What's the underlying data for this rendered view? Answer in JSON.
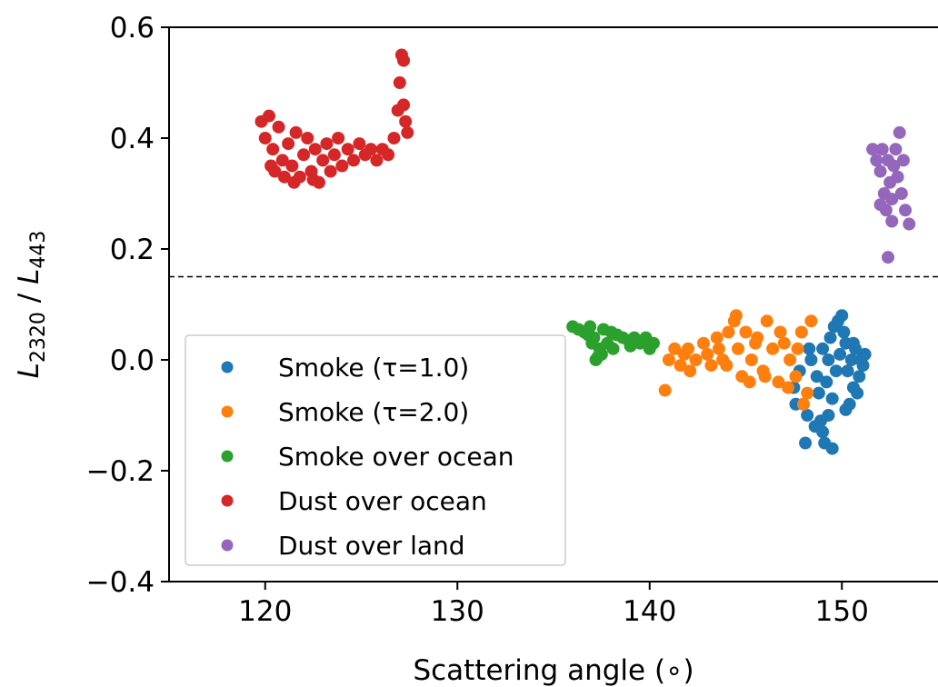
{
  "chart_data": {
    "type": "scatter",
    "title": "",
    "xlabel": "Scattering angle (∘)",
    "ylabel_parts": {
      "main": "L",
      "num_sub": "2320",
      "sep": " / ",
      "den": "L",
      "den_sub": "443"
    },
    "xlim": [
      115,
      155
    ],
    "ylim": [
      -0.4,
      0.6
    ],
    "xticks": [
      120,
      130,
      140,
      150
    ],
    "xtick_labels": [
      "120",
      "130",
      "140",
      "150"
    ],
    "yticks": [
      -0.4,
      -0.2,
      0.0,
      0.2,
      0.4,
      0.6
    ],
    "ytick_labels": [
      "−0.4",
      "−0.2",
      "0.0",
      "0.2",
      "0.4",
      "0.6"
    ],
    "threshold_line": {
      "y": 0.15,
      "style": "dashed"
    },
    "legend_position": "lower-left",
    "series": [
      {
        "name": "Smoke (τ=1.0)",
        "color": "#1f77b4",
        "points": [
          [
            147.5,
            -0.05
          ],
          [
            147.8,
            -0.02
          ],
          [
            148.0,
            -0.08
          ],
          [
            148.2,
            -0.1
          ],
          [
            148.4,
            0.0
          ],
          [
            148.6,
            -0.12
          ],
          [
            148.8,
            -0.06
          ],
          [
            149.0,
            0.02
          ],
          [
            149.1,
            -0.15
          ],
          [
            149.3,
            -0.1
          ],
          [
            149.4,
            0.04
          ],
          [
            149.5,
            -0.16
          ],
          [
            149.6,
            0.06
          ],
          [
            149.8,
            0.07
          ],
          [
            150.0,
            0.08
          ],
          [
            150.1,
            0.05
          ],
          [
            150.2,
            0.03
          ],
          [
            150.3,
            -0.02
          ],
          [
            150.5,
            0.0
          ],
          [
            150.6,
            -0.05
          ],
          [
            150.7,
            0.02
          ],
          [
            150.9,
            -0.03
          ],
          [
            151.0,
            0.0
          ],
          [
            151.1,
            -0.01
          ],
          [
            151.2,
            0.01
          ],
          [
            149.2,
            -0.04
          ],
          [
            149.7,
            -0.02
          ],
          [
            150.4,
            -0.08
          ],
          [
            148.1,
            -0.15
          ],
          [
            148.9,
            -0.11
          ],
          [
            149.9,
            0.01
          ],
          [
            150.8,
            -0.06
          ],
          [
            147.6,
            -0.08
          ],
          [
            148.3,
            0.02
          ],
          [
            149.5,
            -0.07
          ],
          [
            150.2,
            -0.09
          ],
          [
            149.0,
            -0.13
          ],
          [
            150.6,
            0.03
          ],
          [
            148.7,
            -0.03
          ],
          [
            149.3,
            0.0
          ]
        ]
      },
      {
        "name": "Smoke (τ=2.0)",
        "color": "#ff7f0e",
        "points": [
          [
            140.8,
            -0.055
          ],
          [
            141.0,
            0.0
          ],
          [
            141.3,
            0.02
          ],
          [
            141.6,
            -0.01
          ],
          [
            142.0,
            0.02
          ],
          [
            142.4,
            0.0
          ],
          [
            142.8,
            0.03
          ],
          [
            143.2,
            -0.01
          ],
          [
            143.5,
            0.04
          ],
          [
            143.8,
            0.0
          ],
          [
            144.1,
            0.05
          ],
          [
            144.4,
            0.07
          ],
          [
            144.6,
            0.02
          ],
          [
            144.8,
            -0.03
          ],
          [
            145.0,
            0.05
          ],
          [
            145.3,
            0.0
          ],
          [
            145.6,
            0.04
          ],
          [
            145.9,
            -0.02
          ],
          [
            146.1,
            0.07
          ],
          [
            146.4,
            0.02
          ],
          [
            146.7,
            -0.04
          ],
          [
            147.0,
            0.03
          ],
          [
            147.3,
            0.0
          ],
          [
            147.6,
            -0.03
          ],
          [
            147.9,
            0.05
          ],
          [
            148.2,
            -0.06
          ],
          [
            148.4,
            0.07
          ],
          [
            144.5,
            0.08
          ],
          [
            143.0,
            0.01
          ],
          [
            142.1,
            -0.02
          ],
          [
            146.0,
            -0.03
          ],
          [
            145.5,
            0.03
          ],
          [
            147.2,
            -0.05
          ],
          [
            148.0,
            -0.08
          ],
          [
            144.0,
            -0.01
          ],
          [
            146.8,
            0.05
          ],
          [
            141.8,
            0.01
          ],
          [
            143.6,
            0.02
          ],
          [
            145.2,
            -0.04
          ],
          [
            147.7,
            0.02
          ]
        ]
      },
      {
        "name": "Smoke over ocean",
        "color": "#2ca02c",
        "points": [
          [
            136.0,
            0.06
          ],
          [
            136.3,
            0.055
          ],
          [
            136.6,
            0.05
          ],
          [
            136.9,
            0.06
          ],
          [
            137.1,
            0.04
          ],
          [
            137.2,
            0.0
          ],
          [
            137.4,
            0.02
          ],
          [
            137.6,
            0.055
          ],
          [
            137.8,
            0.03
          ],
          [
            138.0,
            0.05
          ],
          [
            138.3,
            0.045
          ],
          [
            138.6,
            0.04
          ],
          [
            138.9,
            0.035
          ],
          [
            139.2,
            0.04
          ],
          [
            139.5,
            0.03
          ],
          [
            139.8,
            0.04
          ],
          [
            140.0,
            0.02
          ],
          [
            137.0,
            0.03
          ],
          [
            137.5,
            0.01
          ],
          [
            138.1,
            0.02
          ],
          [
            136.8,
            0.045
          ],
          [
            139.0,
            0.025
          ],
          [
            140.2,
            0.03
          ],
          [
            137.3,
            0.005
          ]
        ]
      },
      {
        "name": "Dust over ocean",
        "color": "#d62728",
        "points": [
          [
            119.8,
            0.43
          ],
          [
            120.0,
            0.4
          ],
          [
            120.2,
            0.44
          ],
          [
            120.4,
            0.38
          ],
          [
            120.5,
            0.34
          ],
          [
            120.7,
            0.42
          ],
          [
            120.9,
            0.36
          ],
          [
            121.0,
            0.33
          ],
          [
            121.2,
            0.39
          ],
          [
            121.4,
            0.35
          ],
          [
            121.6,
            0.41
          ],
          [
            121.8,
            0.33
          ],
          [
            122.0,
            0.37
          ],
          [
            122.2,
            0.4
          ],
          [
            122.4,
            0.34
          ],
          [
            122.6,
            0.38
          ],
          [
            122.8,
            0.32
          ],
          [
            123.0,
            0.36
          ],
          [
            123.2,
            0.39
          ],
          [
            123.4,
            0.34
          ],
          [
            123.6,
            0.37
          ],
          [
            123.8,
            0.4
          ],
          [
            124.0,
            0.35
          ],
          [
            124.3,
            0.38
          ],
          [
            124.6,
            0.36
          ],
          [
            124.9,
            0.39
          ],
          [
            125.2,
            0.37
          ],
          [
            125.5,
            0.38
          ],
          [
            125.8,
            0.36
          ],
          [
            126.1,
            0.38
          ],
          [
            126.4,
            0.37
          ],
          [
            126.7,
            0.4
          ],
          [
            126.9,
            0.45
          ],
          [
            127.0,
            0.5
          ],
          [
            127.1,
            0.55
          ],
          [
            127.2,
            0.54
          ],
          [
            127.2,
            0.46
          ],
          [
            127.3,
            0.43
          ],
          [
            127.4,
            0.41
          ],
          [
            121.5,
            0.32
          ],
          [
            122.5,
            0.325
          ],
          [
            120.3,
            0.35
          ]
        ]
      },
      {
        "name": "Dust over land",
        "color": "#9467bd",
        "points": [
          [
            151.6,
            0.38
          ],
          [
            151.8,
            0.36
          ],
          [
            152.0,
            0.34
          ],
          [
            152.1,
            0.38
          ],
          [
            152.2,
            0.3
          ],
          [
            152.3,
            0.27
          ],
          [
            152.4,
            0.36
          ],
          [
            152.5,
            0.32
          ],
          [
            152.6,
            0.29
          ],
          [
            152.7,
            0.35
          ],
          [
            152.8,
            0.38
          ],
          [
            152.9,
            0.33
          ],
          [
            153.0,
            0.41
          ],
          [
            153.1,
            0.3
          ],
          [
            153.2,
            0.36
          ],
          [
            153.3,
            0.27
          ],
          [
            153.5,
            0.245
          ],
          [
            152.4,
            0.185
          ],
          [
            152.0,
            0.28
          ],
          [
            152.6,
            0.25
          ]
        ]
      }
    ]
  }
}
